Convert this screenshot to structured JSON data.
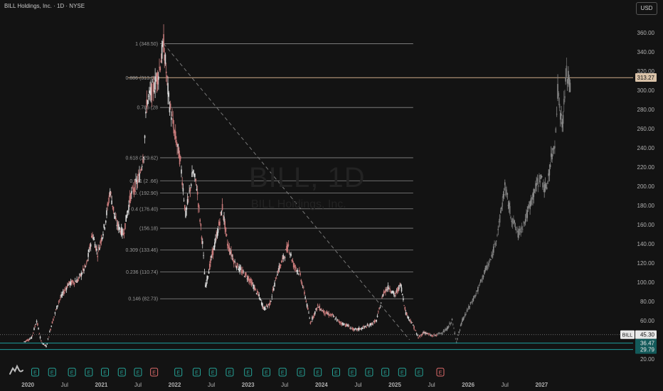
{
  "header": {
    "symbol_title": "BILL Holdings, Inc. · 1D · NYSE",
    "currency_button": "USD",
    "watermark_symbol": "BILL, 1D",
    "watermark_name": "BILL Holdings, Inc."
  },
  "colors": {
    "background": "#131313",
    "candle_up": "#d8d8d8",
    "candle_down": "#c87a7a",
    "projection": "#8a8a8a",
    "fib_line": "#8a8a8a",
    "highlight_line": "#b89a7c",
    "support_line": "#1e9e9e",
    "earnings_e": "#26a69a",
    "earnings_future": "#e06c6c"
  },
  "chart_data": {
    "type": "line",
    "title": "BILL Holdings, Inc. · 1D · NYSE",
    "y_axis": {
      "ticks": [
        360,
        340,
        320,
        300,
        280,
        260,
        240,
        220,
        200,
        180,
        160,
        140,
        120,
        100,
        80,
        60,
        40,
        20
      ],
      "tick_labels": [
        "360.00",
        "340.00",
        "320.00",
        "300.00",
        "280.00",
        "260.00",
        "240.00",
        "220.00",
        "200.00",
        "180.00",
        "160.00",
        "140.00",
        "120.00",
        "100.00",
        "80.00",
        "60.00",
        "40.00",
        "20.00"
      ],
      "range": [
        14,
        374
      ]
    },
    "x_axis": {
      "tick_labels": [
        "2020",
        "Jul",
        "2021",
        "Jul",
        "2022",
        "Jul",
        "2023",
        "Jul",
        "2024",
        "Jul",
        "2025",
        "Jul",
        "2026",
        "Jul",
        "2027"
      ],
      "tick_years": [
        2020.0,
        2020.5,
        2021.0,
        2021.5,
        2022.0,
        2022.5,
        2023.0,
        2023.5,
        2024.0,
        2024.5,
        2025.0,
        2025.5,
        2026.0,
        2026.5,
        2027.0
      ],
      "range": [
        2019.62,
        2028.15
      ]
    },
    "price_history": [
      [
        2019.95,
        38
      ],
      [
        2020.05,
        42
      ],
      [
        2020.12,
        60
      ],
      [
        2020.18,
        38
      ],
      [
        2020.25,
        33
      ],
      [
        2020.32,
        55
      ],
      [
        2020.42,
        80
      ],
      [
        2020.55,
        98
      ],
      [
        2020.68,
        102
      ],
      [
        2020.8,
        118
      ],
      [
        2020.88,
        150
      ],
      [
        2020.95,
        130
      ],
      [
        2021.05,
        160
      ],
      [
        2021.12,
        195
      ],
      [
        2021.2,
        162
      ],
      [
        2021.3,
        150
      ],
      [
        2021.4,
        190
      ],
      [
        2021.52,
        210
      ],
      [
        2021.58,
        235
      ],
      [
        2021.62,
        288
      ],
      [
        2021.7,
        300
      ],
      [
        2021.78,
        318
      ],
      [
        2021.85,
        348.5
      ],
      [
        2021.92,
        290
      ],
      [
        2022.0,
        255
      ],
      [
        2022.08,
        225
      ],
      [
        2022.15,
        170
      ],
      [
        2022.25,
        215
      ],
      [
        2022.3,
        200
      ],
      [
        2022.38,
        140
      ],
      [
        2022.42,
        95
      ],
      [
        2022.5,
        125
      ],
      [
        2022.58,
        150
      ],
      [
        2022.65,
        178
      ],
      [
        2022.72,
        140
      ],
      [
        2022.82,
        120
      ],
      [
        2022.9,
        112
      ],
      [
        2023.0,
        105
      ],
      [
        2023.08,
        95
      ],
      [
        2023.15,
        85
      ],
      [
        2023.22,
        72
      ],
      [
        2023.3,
        78
      ],
      [
        2023.4,
        110
      ],
      [
        2023.48,
        125
      ],
      [
        2023.55,
        138
      ],
      [
        2023.62,
        118
      ],
      [
        2023.7,
        110
      ],
      [
        2023.78,
        85
      ],
      [
        2023.85,
        58
      ],
      [
        2023.95,
        75
      ],
      [
        2024.05,
        68
      ],
      [
        2024.15,
        65
      ],
      [
        2024.25,
        58
      ],
      [
        2024.35,
        55
      ],
      [
        2024.45,
        50
      ],
      [
        2024.55,
        52
      ],
      [
        2024.65,
        55
      ],
      [
        2024.75,
        60
      ],
      [
        2024.85,
        90
      ],
      [
        2024.92,
        95
      ],
      [
        2025.0,
        86
      ],
      [
        2025.08,
        98
      ],
      [
        2025.15,
        68
      ],
      [
        2025.25,
        55
      ],
      [
        2025.32,
        42
      ],
      [
        2025.4,
        48
      ],
      [
        2025.5,
        44
      ],
      [
        2025.58,
        45.3
      ]
    ],
    "projection_path": [
      [
        2025.58,
        45.3
      ],
      [
        2025.7,
        50
      ],
      [
        2025.78,
        60
      ],
      [
        2025.84,
        38
      ],
      [
        2025.92,
        60
      ],
      [
        2026.02,
        75
      ],
      [
        2026.12,
        90
      ],
      [
        2026.22,
        110
      ],
      [
        2026.32,
        125
      ],
      [
        2026.42,
        160
      ],
      [
        2026.5,
        200
      ],
      [
        2026.58,
        170
      ],
      [
        2026.68,
        150
      ],
      [
        2026.78,
        165
      ],
      [
        2026.88,
        190
      ],
      [
        2026.98,
        210
      ],
      [
        2027.06,
        195
      ],
      [
        2027.13,
        228
      ],
      [
        2027.18,
        245
      ],
      [
        2027.22,
        300
      ],
      [
        2027.28,
        262
      ],
      [
        2027.34,
        318
      ],
      [
        2027.4,
        300
      ]
    ],
    "fib_levels": [
      {
        "ratio": "1",
        "value": 348.5,
        "label": "1 (348.50)"
      },
      {
        "ratio": "0.886",
        "value": 313.02,
        "label": "0.886 (313.02)"
      },
      {
        "ratio": "0.786",
        "value": 282,
        "label": "0.786 (28"
      },
      {
        "ratio": "0.618",
        "value": 229.62,
        "label": "0.618 (229.62)"
      },
      {
        "ratio": "0.541",
        "value": 205.66,
        "label": "0.541 (2  .66)"
      },
      {
        "ratio": "0.5",
        "value": 192.9,
        "label": "0.  (192.90)"
      },
      {
        "ratio": "0.441",
        "value": 176.4,
        "label": "0.4  (176.40)"
      },
      {
        "ratio": "0.382",
        "value": 156.18,
        "label": "(156.18)"
      },
      {
        "ratio": "0.309",
        "value": 133.46,
        "label": "0.309 (133.46)"
      },
      {
        "ratio": "0.236",
        "value": 110.74,
        "label": "0.236 (110.74)"
      },
      {
        "ratio": "0.146",
        "value": 82.73,
        "label": "0.146 (82.73)"
      }
    ],
    "fib_x_range": [
      2021.85,
      2025.25
    ],
    "trendline": {
      "from": [
        2021.85,
        348.5
      ],
      "to": [
        2025.2,
        40
      ]
    },
    "price_labels": {
      "highlight": {
        "value": 313.27,
        "label": "313.27"
      },
      "current": {
        "symbol": "BILL",
        "value": 45.3,
        "label": "45.30"
      },
      "support_1": {
        "value": 36.47,
        "label": "36.47"
      },
      "support_2": {
        "value": 29.79,
        "label": "29.79"
      }
    },
    "earnings_markers": {
      "label": "E",
      "past_years": [
        2020.1,
        2020.33,
        2020.6,
        2020.83,
        2021.05,
        2021.28,
        2021.5,
        2022.05,
        2022.3,
        2022.52,
        2022.75,
        2023.0,
        2023.25,
        2023.47,
        2023.72,
        2023.95,
        2024.2,
        2024.42,
        2024.65,
        2024.87,
        2025.1,
        2025.33
      ],
      "future_year": 2025.62,
      "special_year": 2021.72
    }
  }
}
